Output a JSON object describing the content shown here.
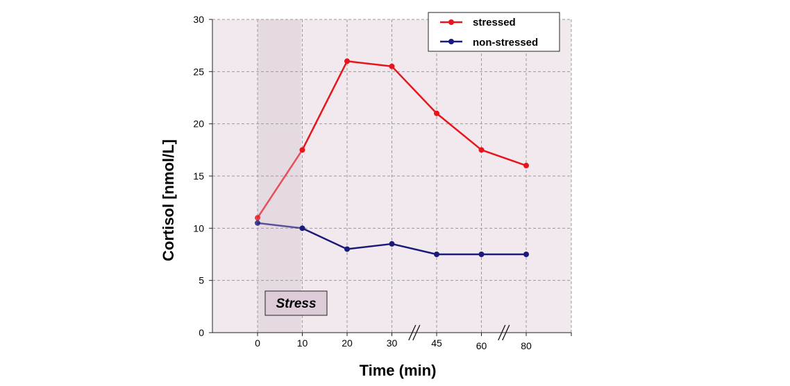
{
  "chart_data": {
    "type": "line",
    "x_categories": [
      "0",
      "10",
      "20",
      "30",
      "45",
      "60",
      "80"
    ],
    "series": [
      {
        "name": "stressed",
        "color": "#e8141c",
        "values": [
          11,
          17.5,
          26,
          25.5,
          21,
          17.5,
          16
        ]
      },
      {
        "name": "non-stressed",
        "color": "#1a1a7a",
        "values": [
          10.5,
          10,
          8,
          8.5,
          7.5,
          7.5,
          7.5
        ]
      }
    ],
    "xlabel": "Time (min)",
    "ylabel": "Cortisol [nmol/L]",
    "ylim": [
      0,
      30
    ],
    "yticks": [
      "0",
      "5",
      "10",
      "15",
      "20",
      "25",
      "30"
    ],
    "grid": true,
    "legend_position": "top-right",
    "axis_breaks_between": [
      [
        "30",
        "45"
      ],
      [
        "60",
        "80"
      ]
    ],
    "shaded_region": {
      "from": "0",
      "to": "10",
      "label": "Stress"
    }
  },
  "colors": {
    "plot_background": "#f1e9ee",
    "shade": "#e3d6df",
    "label_box": "#ddcbd8",
    "grid": "#9a9a9a"
  }
}
